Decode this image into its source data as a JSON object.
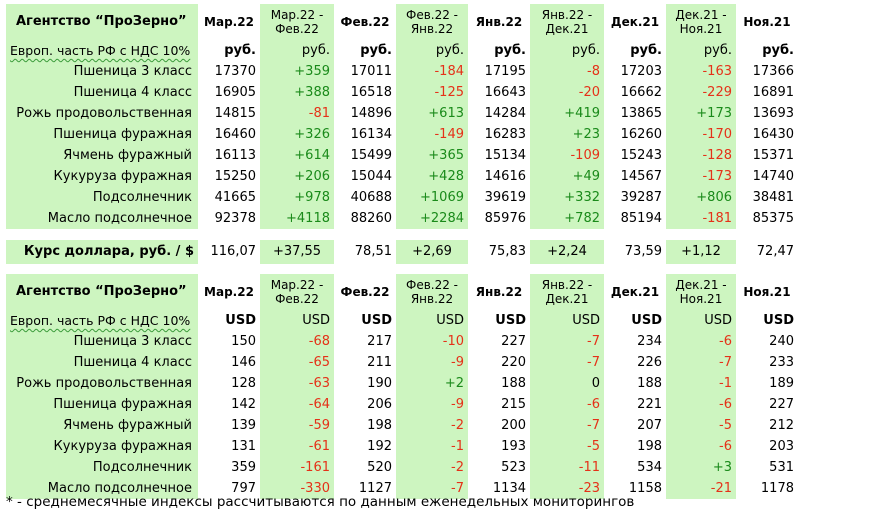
{
  "headers": {
    "agency": "Агентство “ПроЗерно”",
    "months": [
      "Мар.22",
      "Фев.22",
      "Янв.22",
      "Дек.21",
      "Ноя.21"
    ],
    "changes": [
      [
        "Мар.22 -",
        "Фев.22"
      ],
      [
        "Фев.22 -",
        "Янв.22"
      ],
      [
        "Янв.22 -",
        "Дек.21"
      ],
      [
        "Дек.21 -",
        "Ноя.21"
      ]
    ]
  },
  "region_label": "Европ. часть РФ с НДС 10%",
  "products": [
    "Пшеница 3 класс",
    "Пшеница 4 класс",
    "Рожь продовольственная",
    "Пшеница фуражная",
    "Ячмень фуражный",
    "Кукуруза фуражная",
    "Подсолнечник",
    "Масло подсолнечное"
  ],
  "rub_table": {
    "unit": "руб.",
    "rows": [
      [
        "17370",
        "+359",
        "17011",
        "-184",
        "17195",
        "-8",
        "17203",
        "-163",
        "17366"
      ],
      [
        "16905",
        "+388",
        "16518",
        "-125",
        "16643",
        "-20",
        "16662",
        "-229",
        "16891"
      ],
      [
        "14815",
        "-81",
        "14896",
        "+613",
        "14284",
        "+419",
        "13865",
        "+173",
        "13693"
      ],
      [
        "16460",
        "+326",
        "16134",
        "-149",
        "16283",
        "+23",
        "16260",
        "-170",
        "16430"
      ],
      [
        "16113",
        "+614",
        "15499",
        "+365",
        "15134",
        "-109",
        "15243",
        "-128",
        "15371"
      ],
      [
        "15250",
        "+206",
        "15044",
        "+428",
        "14616",
        "+49",
        "14567",
        "-173",
        "14740"
      ],
      [
        "41665",
        "+978",
        "40688",
        "+1069",
        "39619",
        "+332",
        "39287",
        "+806",
        "38481"
      ],
      [
        "92378",
        "+4118",
        "88260",
        "+2284",
        "85976",
        "+782",
        "85194",
        "-181",
        "85375"
      ]
    ]
  },
  "exchange_rate": {
    "label": "Курс доллара, руб. / $",
    "values": [
      "116,07",
      "+37,55",
      "78,51",
      "+2,69",
      "75,83",
      "+2,24",
      "73,59",
      "+1,12",
      "72,47"
    ]
  },
  "usd_table": {
    "unit": "USD",
    "rows": [
      [
        "150",
        "-68",
        "217",
        "-10",
        "227",
        "-7",
        "234",
        "-6",
        "240"
      ],
      [
        "146",
        "-65",
        "211",
        "-9",
        "220",
        "-7",
        "226",
        "-7",
        "233"
      ],
      [
        "128",
        "-63",
        "190",
        "+2",
        "188",
        "0",
        "188",
        "-1",
        "189"
      ],
      [
        "142",
        "-64",
        "206",
        "-9",
        "215",
        "-6",
        "221",
        "-6",
        "227"
      ],
      [
        "139",
        "-59",
        "198",
        "-2",
        "200",
        "-7",
        "207",
        "-5",
        "212"
      ],
      [
        "131",
        "-61",
        "192",
        "-1",
        "193",
        "-5",
        "198",
        "-6",
        "203"
      ],
      [
        "359",
        "-161",
        "520",
        "-2",
        "523",
        "-11",
        "534",
        "+3",
        "531"
      ],
      [
        "797",
        "-330",
        "1127",
        "-7",
        "1134",
        "-23",
        "1158",
        "-21",
        "1178"
      ]
    ]
  },
  "footnote": "* - среднемесячные индексы рассчитываются по данным еженедельных мониторингов",
  "colors": {
    "band_bg": "#cdf5c0",
    "positive": "#1a8a1a",
    "negative": "#e53118"
  }
}
